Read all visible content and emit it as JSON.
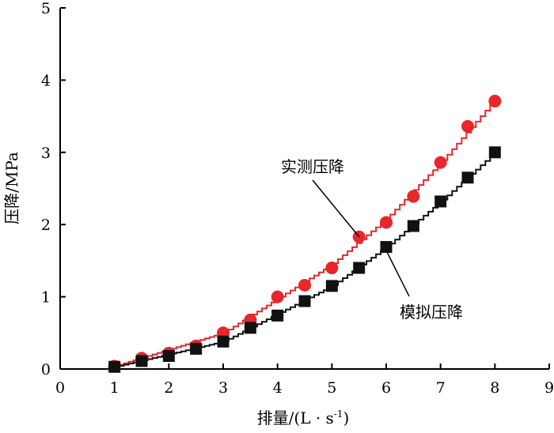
{
  "chart_data": {
    "type": "scatter",
    "xlabel": "排量/(L · s",
    "xlabel_sup": "-1",
    "xlabel_close": ")",
    "ylabel": "压降/MPa",
    "xlim": [
      0,
      9
    ],
    "ylim": [
      0,
      5
    ],
    "xticks": [
      "0",
      "1",
      "2",
      "3",
      "4",
      "5",
      "6",
      "7",
      "8",
      "9"
    ],
    "yticks": [
      "0",
      "1",
      "2",
      "3",
      "4",
      "5"
    ],
    "grid": false,
    "series": [
      {
        "name": "实测压降",
        "marker": "circle",
        "color": "#e8262b",
        "points": [
          [
            1.0,
            0.04
          ],
          [
            1.5,
            0.15
          ],
          [
            2.0,
            0.22
          ],
          [
            2.5,
            0.32
          ],
          [
            3.0,
            0.5
          ],
          [
            3.5,
            0.68
          ],
          [
            4.0,
            1.0
          ],
          [
            4.5,
            1.16
          ],
          [
            5.0,
            1.4
          ],
          [
            5.5,
            1.83
          ],
          [
            6.0,
            2.03
          ],
          [
            6.5,
            2.39
          ],
          [
            7.0,
            2.86
          ],
          [
            7.5,
            3.36
          ],
          [
            8.0,
            3.71
          ]
        ],
        "fit": [
          [
            1.0,
            0.04
          ],
          [
            3.0,
            0.5
          ],
          [
            5.0,
            1.45
          ],
          [
            6.0,
            2.08
          ],
          [
            7.0,
            2.86
          ],
          [
            8.0,
            3.73
          ]
        ]
      },
      {
        "name": "模拟压降",
        "marker": "square",
        "color": "#111111",
        "points": [
          [
            1.0,
            0.03
          ],
          [
            1.5,
            0.11
          ],
          [
            2.0,
            0.18
          ],
          [
            2.5,
            0.28
          ],
          [
            3.0,
            0.38
          ],
          [
            3.5,
            0.57
          ],
          [
            4.0,
            0.74
          ],
          [
            4.5,
            0.94
          ],
          [
            5.0,
            1.15
          ],
          [
            5.5,
            1.4
          ],
          [
            6.0,
            1.69
          ],
          [
            6.5,
            1.98
          ],
          [
            7.0,
            2.32
          ],
          [
            7.5,
            2.65
          ],
          [
            8.0,
            3.0
          ]
        ],
        "fit": [
          [
            1.0,
            0.03
          ],
          [
            3.0,
            0.38
          ],
          [
            5.0,
            1.15
          ],
          [
            6.0,
            1.69
          ],
          [
            7.0,
            2.32
          ],
          [
            8.0,
            3.0
          ]
        ]
      }
    ],
    "annotations": [
      {
        "text": "实测压降",
        "anchor": [
          5.5,
          1.85
        ]
      },
      {
        "text": "模拟压降",
        "anchor": [
          6.1,
          1.65
        ]
      }
    ]
  }
}
